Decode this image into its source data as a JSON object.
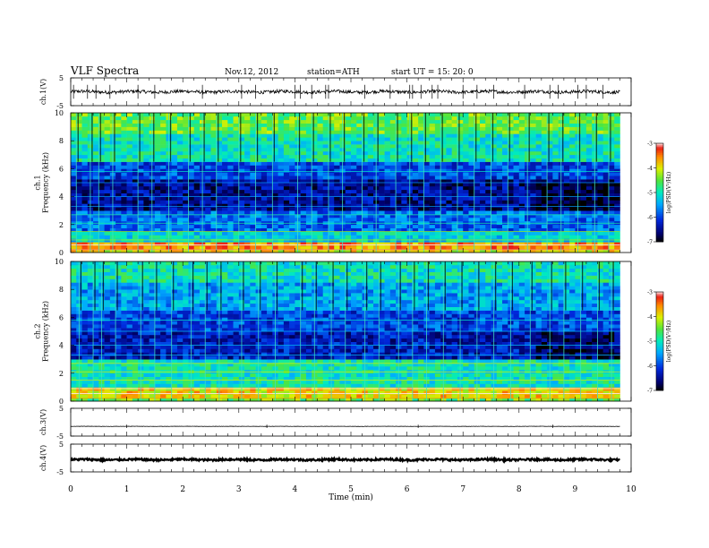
{
  "header": {
    "title": "VLF  Spectra",
    "date": "Nov.12, 2012",
    "station": "station=ATH",
    "start": "start  UT  =    15: 20: 0"
  },
  "chart_data": [
    {
      "type": "line",
      "panel": "ch1",
      "ylabel": "ch.1(V)",
      "yticks": [
        "5",
        "-5"
      ],
      "ylim": [
        -5,
        5
      ],
      "xlim": [
        0,
        10
      ],
      "x_extent": [
        0,
        9.8
      ],
      "baseline": 0,
      "noise_amplitude": 0.6,
      "spike_times": [
        0.05,
        0.3,
        0.45,
        0.7,
        1.2,
        1.5,
        2.35,
        3.05,
        3.3,
        4.0,
        4.1,
        4.3,
        4.55,
        4.6,
        5.25,
        5.7,
        6.05,
        6.1,
        6.25,
        6.45,
        6.55,
        7.0,
        7.25,
        7.55,
        8.1,
        8.55,
        8.7,
        9.05,
        9.2,
        9.5
      ],
      "spike_amplitude": 2.5
    },
    {
      "type": "heatmap",
      "panel": "ch1-spectrogram",
      "ylabel": "ch.1\nFrequency  (kHz)",
      "yticks": [
        "10",
        "8",
        "6",
        "4",
        "2",
        "0"
      ],
      "ylim": [
        0,
        10
      ],
      "xlim": [
        0,
        10
      ],
      "x_extent": [
        0,
        9.8
      ],
      "colorbar": {
        "label": "log(PSD(V²/Hz)",
        "ticks": [
          "-3",
          "-4",
          "-5",
          "-6",
          "-7"
        ],
        "range": [
          -7,
          -3
        ]
      },
      "bands_khz": [
        {
          "from": 0,
          "to": 0.3,
          "logpsd": -4.0
        },
        {
          "from": 0.3,
          "to": 0.8,
          "logpsd": -3.6
        },
        {
          "from": 0.8,
          "to": 1.6,
          "logpsd": -5.2
        },
        {
          "from": 1.6,
          "to": 3.0,
          "logpsd": -5.8
        },
        {
          "from": 3.0,
          "to": 5.2,
          "logpsd": -6.5
        },
        {
          "from": 5.2,
          "to": 6.5,
          "logpsd": -6.0
        },
        {
          "from": 6.5,
          "to": 8.5,
          "logpsd": -5.0
        },
        {
          "from": 8.5,
          "to": 10.0,
          "logpsd": -4.5
        }
      ],
      "sferic_times": [
        0.1,
        0.35,
        0.5,
        0.75,
        1.2,
        1.45,
        1.75,
        2.1,
        2.35,
        2.6,
        3.0,
        3.3,
        3.6,
        4.05,
        4.3,
        4.6,
        4.85,
        5.2,
        5.45,
        5.8,
        6.05,
        6.3,
        6.6,
        6.9,
        7.2,
        7.5,
        7.8,
        8.15,
        8.5,
        8.75,
        9.05,
        9.35,
        9.6
      ]
    },
    {
      "type": "heatmap",
      "panel": "ch2-spectrogram",
      "ylabel": "ch.2\nFrequency  (kHz)",
      "yticks": [
        "10",
        "8",
        "6",
        "4",
        "2",
        "0"
      ],
      "ylim": [
        0,
        10
      ],
      "xlim": [
        0,
        10
      ],
      "x_extent": [
        0,
        9.8
      ],
      "colorbar": {
        "label": "log(PSD(V²/Hz)",
        "ticks": [
          "-3",
          "-4",
          "-5",
          "-6",
          "-7"
        ],
        "range": [
          -7,
          -3
        ]
      },
      "bands_khz": [
        {
          "from": 0,
          "to": 0.3,
          "logpsd": -4.5
        },
        {
          "from": 0.3,
          "to": 1.0,
          "logpsd": -3.9
        },
        {
          "from": 1.0,
          "to": 3.0,
          "logpsd": -5.0
        },
        {
          "from": 3.0,
          "to": 5.0,
          "logpsd": -6.3
        },
        {
          "from": 5.0,
          "to": 6.5,
          "logpsd": -6.0
        },
        {
          "from": 6.5,
          "to": 8.5,
          "logpsd": -5.5
        },
        {
          "from": 8.5,
          "to": 10.0,
          "logpsd": -5.0
        }
      ],
      "sferic_times": [
        0.15,
        0.4,
        0.55,
        0.8,
        1.25,
        1.5,
        1.8,
        2.15,
        2.4,
        2.65,
        3.05,
        3.35,
        3.65,
        4.1,
        4.35,
        4.65,
        4.9,
        5.25,
        5.5,
        5.85,
        6.1,
        6.35,
        6.65,
        6.95,
        7.25,
        7.55,
        7.85,
        8.2,
        8.55,
        8.8,
        9.1,
        9.4,
        9.65
      ]
    },
    {
      "type": "line",
      "panel": "ch3",
      "ylabel": "ch.3(V)",
      "yticks": [
        "5",
        "-5"
      ],
      "ylim": [
        -5,
        5
      ],
      "xlim": [
        0,
        10
      ],
      "x_extent": [
        0,
        9.8
      ],
      "baseline": -1.5,
      "noise_amplitude": 0.05,
      "spike_times": [
        1.0,
        3.5,
        6.2,
        8.6
      ],
      "spike_amplitude": 0.6
    },
    {
      "type": "line",
      "panel": "ch4",
      "ylabel": "ch.4(V)",
      "yticks": [
        "5",
        "-5"
      ],
      "ylim": [
        -5,
        5
      ],
      "xlim": [
        0,
        10
      ],
      "x_extent": [
        0,
        9.8
      ],
      "baseline": -0.6,
      "noise_amplitude": 0.35,
      "spike_times": [],
      "spike_amplitude": 0
    }
  ],
  "x_axis": {
    "label": "Time  (min)",
    "ticks": [
      "0",
      "1",
      "2",
      "3",
      "4",
      "5",
      "6",
      "7",
      "8",
      "9",
      "10"
    ]
  }
}
